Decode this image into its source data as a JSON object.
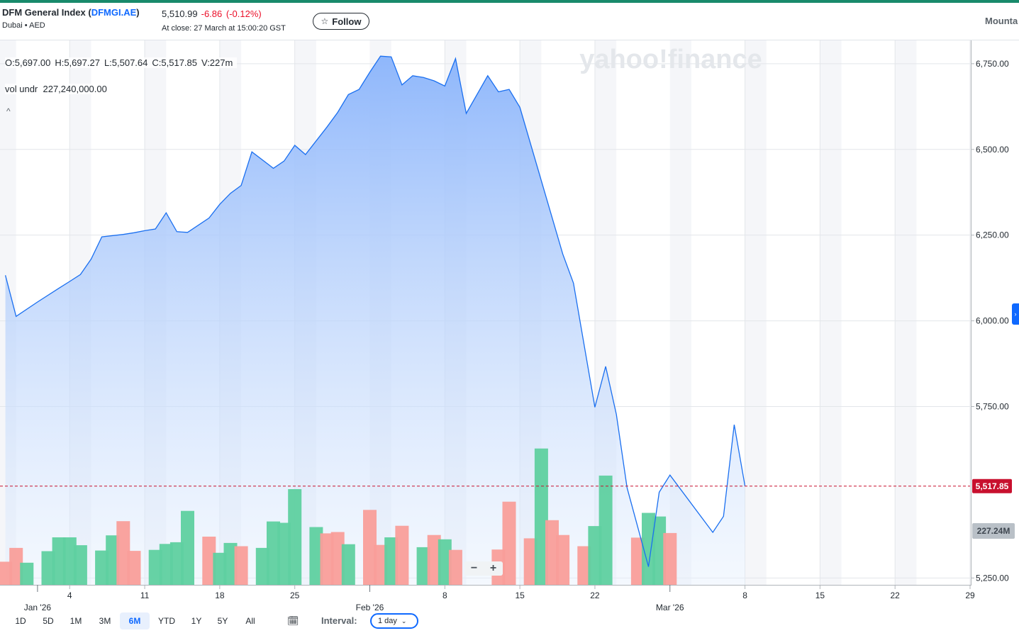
{
  "header": {
    "index_name": "DFM General Index",
    "symbol": "DFMGI.AE",
    "exchange": "Dubai",
    "currency": "AED",
    "price": "5,510.99",
    "change": "-6.86",
    "change_pct": "(-0.12%)",
    "close_time": "At close: 27 March at 15:00:20 GST",
    "follow_label": "Follow",
    "right_cut_label": "Mounta"
  },
  "ohlc": {
    "open": "O:5,697.00",
    "high": "H:5,697.27",
    "low": "L:5,507.64",
    "close": "C:5,517.85",
    "volume": "V:227m"
  },
  "volume_row": {
    "label": "vol undr",
    "value": "227,240,000.00"
  },
  "watermark": "yahoo!finance",
  "zoom": {
    "minus": "−",
    "plus": "+"
  },
  "ranges": [
    {
      "label": "1D",
      "selected": false
    },
    {
      "label": "5D",
      "selected": false
    },
    {
      "label": "1M",
      "selected": false
    },
    {
      "label": "3M",
      "selected": false
    },
    {
      "label": "6M",
      "selected": true
    },
    {
      "label": "YTD",
      "selected": false
    },
    {
      "label": "1Y",
      "selected": false
    },
    {
      "label": "5Y",
      "selected": false
    },
    {
      "label": "All",
      "selected": false
    }
  ],
  "interval": {
    "label": "Interval:",
    "value": "1 day"
  },
  "colors": {
    "line": "#1a6ff0",
    "area_top": "#8fb7fb",
    "up_volume": "#5fd0a0",
    "down_volume": "#f99e9a",
    "last_price_tag": "#c8102e",
    "volume_tag": "#b9c0c7",
    "brand": "#188a6b"
  },
  "chart_data": {
    "type": "area",
    "y_ticks": [
      "6,750.00",
      "6,500.00",
      "6,250.00",
      "6,000.00",
      "5,750.00",
      "5,250.00"
    ],
    "y_tick_values": [
      6750,
      6500,
      6250,
      6000,
      5750,
      5250
    ],
    "ylim": [
      5230,
      6820
    ],
    "x_tick_labels": [
      "4",
      "11",
      "18",
      "25",
      "8",
      "15",
      "22",
      "8",
      "15",
      "22",
      "29"
    ],
    "x_tick_days": [
      3,
      10,
      17,
      24,
      38,
      45,
      52,
      66,
      73,
      80,
      87
    ],
    "month_labels": [
      "Jan '26",
      "Feb '26",
      "Mar '26"
    ],
    "month_days": [
      0,
      31,
      59
    ],
    "xlim": [
      -3.5,
      87
    ],
    "last_price": 5517.85,
    "last_price_label": "5,517.85",
    "volume_label": "227.24M",
    "series": [
      {
        "values": [
          {
            "day": -3,
            "close": 6133
          },
          {
            "day": -2,
            "close": 6013
          },
          {
            "day": 0,
            "close": 6055
          },
          {
            "day": 2,
            "close": 6095
          },
          {
            "day": 3,
            "close": 6115
          },
          {
            "day": 4,
            "close": 6135
          },
          {
            "day": 5,
            "close": 6180
          },
          {
            "day": 6,
            "close": 6245
          },
          {
            "day": 8,
            "close": 6252
          },
          {
            "day": 9,
            "close": 6257
          },
          {
            "day": 10,
            "close": 6263
          },
          {
            "day": 11,
            "close": 6268
          },
          {
            "day": 12,
            "close": 6315
          },
          {
            "day": 13,
            "close": 6260
          },
          {
            "day": 14,
            "close": 6258
          },
          {
            "day": 16,
            "close": 6300
          },
          {
            "day": 17,
            "close": 6340
          },
          {
            "day": 18,
            "close": 6372
          },
          {
            "day": 19,
            "close": 6395
          },
          {
            "day": 20,
            "close": 6493
          },
          {
            "day": 22,
            "close": 6445
          },
          {
            "day": 23,
            "close": 6466
          },
          {
            "day": 24,
            "close": 6512
          },
          {
            "day": 25,
            "close": 6485
          },
          {
            "day": 27,
            "close": 6565
          },
          {
            "day": 28,
            "close": 6608
          },
          {
            "day": 29,
            "close": 6660
          },
          {
            "day": 30,
            "close": 6675
          },
          {
            "day": 31,
            "close": 6725
          },
          {
            "day": 32,
            "close": 6772
          },
          {
            "day": 33,
            "close": 6770
          },
          {
            "day": 34,
            "close": 6688
          },
          {
            "day": 35,
            "close": 6715
          },
          {
            "day": 36,
            "close": 6710
          },
          {
            "day": 37,
            "close": 6700
          },
          {
            "day": 38,
            "close": 6685
          },
          {
            "day": 39,
            "close": 6765
          },
          {
            "day": 40,
            "close": 6605
          },
          {
            "day": 42,
            "close": 6715
          },
          {
            "day": 43,
            "close": 6668
          },
          {
            "day": 44,
            "close": 6675
          },
          {
            "day": 45,
            "close": 6623
          },
          {
            "day": 49,
            "close": 6195
          },
          {
            "day": 50,
            "close": 6110
          },
          {
            "day": 52,
            "close": 5748
          },
          {
            "day": 53,
            "close": 5867
          },
          {
            "day": 54,
            "close": 5727
          },
          {
            "day": 55,
            "close": 5513
          },
          {
            "day": 56,
            "close": 5398
          },
          {
            "day": 57,
            "close": 5283
          },
          {
            "day": 58,
            "close": 5500
          },
          {
            "day": 59,
            "close": 5550
          },
          {
            "day": 63,
            "close": 5383
          },
          {
            "day": 64,
            "close": 5430
          },
          {
            "day": 65,
            "close": 5697
          },
          {
            "day": 66,
            "close": 5518
          }
        ]
      }
    ],
    "volume_scale_max": 290,
    "volume": [
      {
        "day": -3,
        "value": 70,
        "dir": "down"
      },
      {
        "day": -2,
        "value": 112,
        "dir": "down"
      },
      {
        "day": -1,
        "value": 67,
        "dir": "up"
      },
      {
        "day": 1,
        "value": 102,
        "dir": "up"
      },
      {
        "day": 2,
        "value": 144,
        "dir": "up"
      },
      {
        "day": 3,
        "value": 144,
        "dir": "up"
      },
      {
        "day": 4,
        "value": 120,
        "dir": "up"
      },
      {
        "day": 6,
        "value": 104,
        "dir": "up"
      },
      {
        "day": 7,
        "value": 150,
        "dir": "up"
      },
      {
        "day": 8,
        "value": 193,
        "dir": "down"
      },
      {
        "day": 9,
        "value": 103,
        "dir": "down"
      },
      {
        "day": 11,
        "value": 106,
        "dir": "up"
      },
      {
        "day": 12,
        "value": 124,
        "dir": "up"
      },
      {
        "day": 13,
        "value": 129,
        "dir": "up"
      },
      {
        "day": 14,
        "value": 224,
        "dir": "up"
      },
      {
        "day": 16,
        "value": 146,
        "dir": "down"
      },
      {
        "day": 17,
        "value": 97,
        "dir": "up"
      },
      {
        "day": 18,
        "value": 127,
        "dir": "up"
      },
      {
        "day": 19,
        "value": 117,
        "dir": "down"
      },
      {
        "day": 21,
        "value": 112,
        "dir": "up"
      },
      {
        "day": 22,
        "value": 192,
        "dir": "up"
      },
      {
        "day": 23,
        "value": 188,
        "dir": "up"
      },
      {
        "day": 24,
        "value": 290,
        "dir": "up"
      },
      {
        "day": 26,
        "value": 175,
        "dir": "up"
      },
      {
        "day": 27,
        "value": 156,
        "dir": "down"
      },
      {
        "day": 28,
        "value": 160,
        "dir": "down"
      },
      {
        "day": 29,
        "value": 123,
        "dir": "up"
      },
      {
        "day": 31,
        "value": 227,
        "dir": "down"
      },
      {
        "day": 32,
        "value": 121,
        "dir": "down"
      },
      {
        "day": 33,
        "value": 144,
        "dir": "up"
      },
      {
        "day": 34,
        "value": 179,
        "dir": "down"
      },
      {
        "day": 36,
        "value": 114,
        "dir": "up"
      },
      {
        "day": 37,
        "value": 151,
        "dir": "down"
      },
      {
        "day": 38,
        "value": 138,
        "dir": "up"
      },
      {
        "day": 39,
        "value": 106,
        "dir": "down"
      },
      {
        "day": 43,
        "value": 107,
        "dir": "down"
      },
      {
        "day": 44,
        "value": 252,
        "dir": "down"
      },
      {
        "day": 46,
        "value": 141,
        "dir": "down"
      },
      {
        "day": 47,
        "value": 413,
        "dir": "up"
      },
      {
        "day": 48,
        "value": 196,
        "dir": "down"
      },
      {
        "day": 49,
        "value": 151,
        "dir": "down"
      },
      {
        "day": 51,
        "value": 117,
        "dir": "down"
      },
      {
        "day": 52,
        "value": 178,
        "dir": "up"
      },
      {
        "day": 53,
        "value": 331,
        "dir": "up"
      },
      {
        "day": 56,
        "value": 143,
        "dir": "down"
      },
      {
        "day": 57,
        "value": 218,
        "dir": "up"
      },
      {
        "day": 58,
        "value": 207,
        "dir": "up"
      },
      {
        "day": 59,
        "value": 157,
        "dir": "down"
      }
    ]
  }
}
